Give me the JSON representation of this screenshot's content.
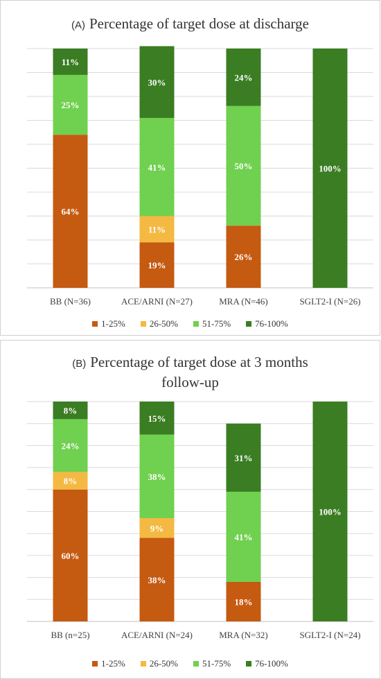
{
  "chart_data": [
    {
      "type": "bar",
      "stacked": true,
      "panel_label": "(A)",
      "title": "Percentage of target dose at discharge",
      "categories": [
        "BB (N=36)",
        "ACE/ARNI (N=27)",
        "MRA (N=46)",
        "SGLT2-I (N=26)"
      ],
      "series": [
        {
          "name": "1-25%",
          "color": "#c55a11",
          "values": [
            64,
            19,
            26,
            0
          ],
          "labels": [
            "64%",
            "19%",
            "26%",
            ""
          ]
        },
        {
          "name": "26-50%",
          "color": "#f4b942",
          "values": [
            0,
            11,
            0,
            0
          ],
          "labels": [
            "",
            "11%",
            "",
            ""
          ]
        },
        {
          "name": "51-75%",
          "color": "#70d04f",
          "values": [
            25,
            41,
            50,
            0
          ],
          "labels": [
            "25%",
            "41%",
            "50%",
            ""
          ]
        },
        {
          "name": "76-100%",
          "color": "#3a7d22",
          "values": [
            11,
            30,
            24,
            100
          ],
          "labels": [
            "11%",
            "30%",
            "24%",
            "100%"
          ]
        }
      ],
      "ylim": [
        0,
        100
      ],
      "grid": true,
      "legend_position": "bottom"
    },
    {
      "type": "bar",
      "stacked": true,
      "panel_label": "(B)",
      "title": "Percentage of target dose at 3 months follow-up",
      "title_lines": [
        "Percentage of target dose at 3 months",
        "follow-up"
      ],
      "categories": [
        "BB (n=25)",
        "ACE/ARNI (N=24)",
        "MRA (N=32)",
        "SGLT2-I (N=24)"
      ],
      "series": [
        {
          "name": "1-25%",
          "color": "#c55a11",
          "values": [
            60,
            38,
            18,
            0
          ],
          "labels": [
            "60%",
            "38%",
            "18%",
            ""
          ]
        },
        {
          "name": "26-50%",
          "color": "#f4b942",
          "values": [
            8,
            9,
            0,
            0
          ],
          "labels": [
            "8%",
            "9%",
            "",
            ""
          ]
        },
        {
          "name": "51-75%",
          "color": "#70d04f",
          "values": [
            24,
            38,
            41,
            0
          ],
          "labels": [
            "24%",
            "38%",
            "41%",
            ""
          ]
        },
        {
          "name": "76-100%",
          "color": "#3a7d22",
          "values": [
            8,
            15,
            31,
            100
          ],
          "labels": [
            "8%",
            "15%",
            "31%",
            "100%"
          ]
        }
      ],
      "ylim": [
        0,
        100
      ],
      "grid": true,
      "legend_position": "bottom"
    }
  ]
}
